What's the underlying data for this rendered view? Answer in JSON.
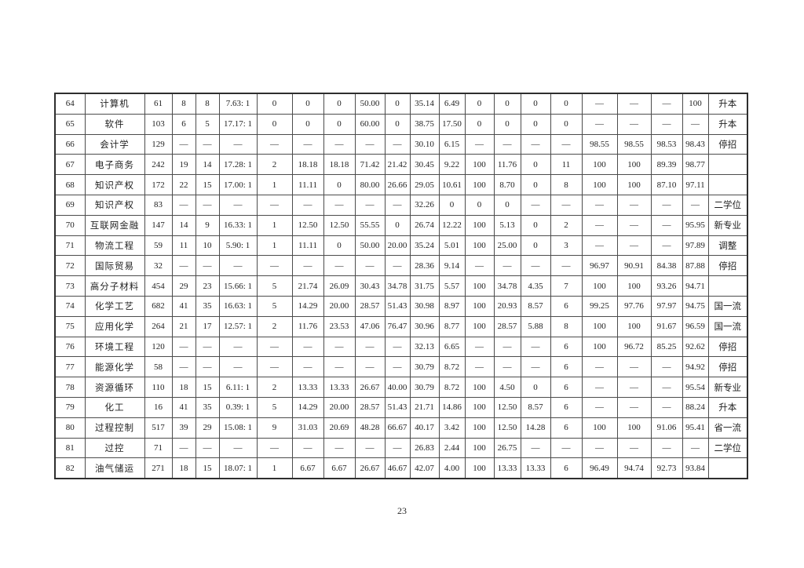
{
  "page": {
    "number": "23"
  },
  "table": {
    "rows": [
      [
        "64",
        "计算机",
        "61",
        "8",
        "8",
        "7.63: 1",
        "0",
        "0",
        "0",
        "50.00",
        "0",
        "35.14",
        "6.49",
        "0",
        "0",
        "0",
        "0",
        "—",
        "—",
        "—",
        "100",
        "升本"
      ],
      [
        "65",
        "软件",
        "103",
        "6",
        "5",
        "17.17: 1",
        "0",
        "0",
        "0",
        "60.00",
        "0",
        "38.75",
        "17.50",
        "0",
        "0",
        "0",
        "0",
        "—",
        "—",
        "—",
        "—",
        "升本"
      ],
      [
        "66",
        "会计学",
        "129",
        "—",
        "—",
        "—",
        "—",
        "—",
        "—",
        "—",
        "—",
        "30.10",
        "6.15",
        "—",
        "—",
        "—",
        "—",
        "98.55",
        "98.55",
        "98.53",
        "98.43",
        "停招"
      ],
      [
        "67",
        "电子商务",
        "242",
        "19",
        "14",
        "17.28: 1",
        "2",
        "18.18",
        "18.18",
        "71.42",
        "21.42",
        "30.45",
        "9.22",
        "100",
        "11.76",
        "0",
        "11",
        "100",
        "100",
        "89.39",
        "98.77",
        ""
      ],
      [
        "68",
        "知识产权",
        "172",
        "22",
        "15",
        "17.00: 1",
        "1",
        "11.11",
        "0",
        "80.00",
        "26.66",
        "29.05",
        "10.61",
        "100",
        "8.70",
        "0",
        "8",
        "100",
        "100",
        "87.10",
        "97.11",
        ""
      ],
      [
        "69",
        "知识产权",
        "83",
        "—",
        "—",
        "—",
        "—",
        "—",
        "—",
        "—",
        "—",
        "32.26",
        "0",
        "0",
        "0",
        "—",
        "—",
        "—",
        "—",
        "—",
        "—",
        "二学位"
      ],
      [
        "70",
        "互联网金融",
        "147",
        "14",
        "9",
        "16.33: 1",
        "1",
        "12.50",
        "12.50",
        "55.55",
        "0",
        "26.74",
        "12.22",
        "100",
        "5.13",
        "0",
        "2",
        "—",
        "—",
        "—",
        "95.95",
        "新专业"
      ],
      [
        "71",
        "物流工程",
        "59",
        "11",
        "10",
        "5.90: 1",
        "1",
        "11.11",
        "0",
        "50.00",
        "20.00",
        "35.24",
        "5.01",
        "100",
        "25.00",
        "0",
        "3",
        "—",
        "—",
        "—",
        "97.89",
        "调整"
      ],
      [
        "72",
        "国际贸易",
        "32",
        "—",
        "—",
        "—",
        "—",
        "—",
        "—",
        "—",
        "—",
        "28.36",
        "9.14",
        "—",
        "—",
        "—",
        "—",
        "96.97",
        "90.91",
        "84.38",
        "87.88",
        "停招"
      ],
      [
        "73",
        "高分子材料",
        "454",
        "29",
        "23",
        "15.66: 1",
        "5",
        "21.74",
        "26.09",
        "30.43",
        "34.78",
        "31.75",
        "5.57",
        "100",
        "34.78",
        "4.35",
        "7",
        "100",
        "100",
        "93.26",
        "94.71",
        ""
      ],
      [
        "74",
        "化学工艺",
        "682",
        "41",
        "35",
        "16.63: 1",
        "5",
        "14.29",
        "20.00",
        "28.57",
        "51.43",
        "30.98",
        "8.97",
        "100",
        "20.93",
        "8.57",
        "6",
        "99.25",
        "97.76",
        "97.97",
        "94.75",
        "国一流"
      ],
      [
        "75",
        "应用化学",
        "264",
        "21",
        "17",
        "12.57: 1",
        "2",
        "11.76",
        "23.53",
        "47.06",
        "76.47",
        "30.96",
        "8.77",
        "100",
        "28.57",
        "5.88",
        "8",
        "100",
        "100",
        "91.67",
        "96.59",
        "国一流"
      ],
      [
        "76",
        "环境工程",
        "120",
        "—",
        "—",
        "—",
        "—",
        "—",
        "—",
        "—",
        "—",
        "32.13",
        "6.65",
        "—",
        "—",
        "—",
        "6",
        "100",
        "96.72",
        "85.25",
        "92.62",
        "停招"
      ],
      [
        "77",
        "能源化学",
        "58",
        "—",
        "—",
        "—",
        "—",
        "—",
        "—",
        "—",
        "—",
        "30.79",
        "8.72",
        "—",
        "—",
        "—",
        "6",
        "—",
        "—",
        "—",
        "94.92",
        "停招"
      ],
      [
        "78",
        "资源循环",
        "110",
        "18",
        "15",
        "6.11: 1",
        "2",
        "13.33",
        "13.33",
        "26.67",
        "40.00",
        "30.79",
        "8.72",
        "100",
        "4.50",
        "0",
        "6",
        "—",
        "—",
        "—",
        "95.54",
        "新专业"
      ],
      [
        "79",
        "化工",
        "16",
        "41",
        "35",
        "0.39: 1",
        "5",
        "14.29",
        "20.00",
        "28.57",
        "51.43",
        "21.71",
        "14.86",
        "100",
        "12.50",
        "8.57",
        "6",
        "—",
        "—",
        "—",
        "88.24",
        "升本"
      ],
      [
        "80",
        "过程控制",
        "517",
        "39",
        "29",
        "15.08: 1",
        "9",
        "31.03",
        "20.69",
        "48.28",
        "66.67",
        "40.17",
        "3.42",
        "100",
        "12.50",
        "14.28",
        "6",
        "100",
        "100",
        "91.06",
        "95.41",
        "省一流"
      ],
      [
        "81",
        "过控",
        "71",
        "—",
        "—",
        "—",
        "—",
        "—",
        "—",
        "—",
        "—",
        "26.83",
        "2.44",
        "100",
        "26.75",
        "—",
        "—",
        "—",
        "—",
        "—",
        "—",
        "二学位"
      ],
      [
        "82",
        "油气储运",
        "271",
        "18",
        "15",
        "18.07: 1",
        "1",
        "6.67",
        "6.67",
        "26.67",
        "46.67",
        "42.07",
        "4.00",
        "100",
        "13.33",
        "13.33",
        "6",
        "96.49",
        "94.74",
        "92.73",
        "93.84",
        ""
      ]
    ]
  }
}
